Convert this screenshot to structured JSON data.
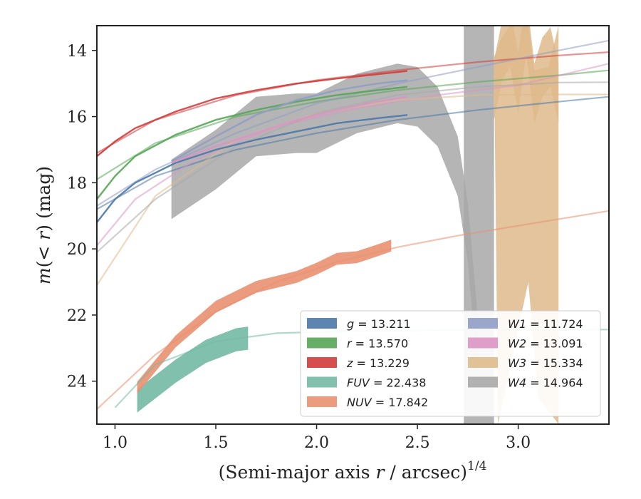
{
  "chart_data": {
    "type": "line",
    "xlabel": "(Semi-major axis r / arcsec)^{1/4}",
    "ylabel": "m(< r) (mag)",
    "xlim": [
      0.91,
      3.45
    ],
    "ylim": [
      25.3,
      13.25
    ],
    "y_inverted": true,
    "x_ticks": [
      "1.0",
      "1.5",
      "2.0",
      "2.5",
      "3.0"
    ],
    "x_tick_values": [
      1.0,
      1.5,
      2.0,
      2.5,
      3.0
    ],
    "y_ticks": [
      "14",
      "16",
      "18",
      "20",
      "22",
      "24"
    ],
    "y_tick_values": [
      14,
      16,
      18,
      20,
      22,
      24
    ],
    "grid": false,
    "legend_position": "lower-right",
    "legend": [
      {
        "key": "g",
        "label": "g = 13.211",
        "color": "#4a78a8"
      },
      {
        "key": "r",
        "label": "r = 13.570",
        "color": "#56a655"
      },
      {
        "key": "z",
        "label": "z = 13.229",
        "color": "#d03c3c"
      },
      {
        "key": "FUV",
        "label": "FUV = 22.438",
        "color": "#72b9a4"
      },
      {
        "key": "NUV",
        "label": "NUV = 17.842",
        "color": "#e99070"
      },
      {
        "key": "W1",
        "label": "W1 = 11.724",
        "color": "#8f9dc5"
      },
      {
        "key": "W2",
        "label": "W2 = 13.091",
        "color": "#dc94c4"
      },
      {
        "key": "W3",
        "label": "W3 = 15.334",
        "color": "#deba8b"
      },
      {
        "key": "W4",
        "label": "W4 = 14.964",
        "color": "#a8a8a8"
      }
    ],
    "series": [
      {
        "name": "g",
        "color": "#4a78a8",
        "data_x": [
          0.91,
          1.0,
          1.1,
          1.3,
          1.5,
          1.7,
          1.9,
          2.1,
          2.3,
          2.45
        ],
        "data_y": [
          19.2,
          18.5,
          18.0,
          17.4,
          17.0,
          16.7,
          16.45,
          16.2,
          16.05,
          15.95
        ],
        "model_x": [
          0.91,
          1.2,
          1.6,
          2.0,
          2.4,
          2.8,
          3.2,
          3.45
        ],
        "model_y": [
          18.8,
          17.8,
          17.0,
          16.5,
          16.1,
          15.8,
          15.55,
          15.4
        ]
      },
      {
        "name": "r",
        "color": "#56a655",
        "data_x": [
          0.91,
          1.0,
          1.1,
          1.3,
          1.5,
          1.7,
          1.9,
          2.1,
          2.3,
          2.45
        ],
        "data_y": [
          18.5,
          17.8,
          17.2,
          16.55,
          16.1,
          15.8,
          15.55,
          15.35,
          15.2,
          15.1
        ],
        "model_x": [
          0.91,
          1.2,
          1.6,
          2.0,
          2.4,
          2.8,
          3.2,
          3.45
        ],
        "model_y": [
          17.9,
          16.8,
          16.0,
          15.55,
          15.2,
          14.95,
          14.75,
          14.6
        ]
      },
      {
        "name": "z",
        "color": "#d03c3c",
        "data_x": [
          0.91,
          1.0,
          1.1,
          1.3,
          1.5,
          1.7,
          1.9,
          2.1,
          2.3,
          2.45
        ],
        "data_y": [
          17.2,
          16.75,
          16.35,
          15.85,
          15.45,
          15.2,
          15.0,
          14.85,
          14.72,
          14.62
        ],
        "model_x": [
          0.91,
          1.2,
          1.6,
          2.0,
          2.4,
          2.8,
          3.2,
          3.45
        ],
        "model_y": [
          17.1,
          16.1,
          15.35,
          14.9,
          14.6,
          14.35,
          14.15,
          14.05
        ]
      },
      {
        "name": "FUV",
        "color": "#72b9a4",
        "data_x": [
          1.11,
          1.3,
          1.45,
          1.6,
          1.66
        ],
        "data_y": [
          24.6,
          23.7,
          23.1,
          22.75,
          22.7
        ],
        "model_x": [
          1.0,
          1.2,
          1.5,
          1.8,
          2.2,
          2.6,
          3.0,
          3.45
        ],
        "model_y": [
          24.8,
          23.5,
          22.8,
          22.55,
          22.48,
          22.46,
          22.45,
          22.44
        ]
      },
      {
        "name": "NUV",
        "color": "#e99070",
        "data_x": [
          1.11,
          1.3,
          1.5,
          1.7,
          1.9,
          2.0,
          2.1,
          2.2,
          2.3,
          2.37
        ],
        "data_y": [
          24.2,
          22.8,
          21.75,
          21.15,
          20.85,
          20.6,
          20.3,
          20.25,
          20.05,
          19.9
        ],
        "model_x": [
          0.91,
          1.2,
          1.5,
          1.8,
          2.1,
          2.4,
          2.7,
          3.0,
          3.45
        ],
        "model_y": [
          24.85,
          23.2,
          21.9,
          21.0,
          20.4,
          19.95,
          19.6,
          19.3,
          18.85
        ]
      },
      {
        "name": "W1",
        "color": "#8f9dc5",
        "data_x": [
          1.28,
          1.5,
          1.7,
          1.9,
          2.1,
          2.3,
          2.45
        ],
        "data_y": [
          17.35,
          16.6,
          15.95,
          15.5,
          15.2,
          15.0,
          14.9
        ],
        "model_x": [
          0.91,
          1.2,
          1.6,
          2.0,
          2.4,
          2.8,
          3.2,
          3.45
        ],
        "model_y": [
          18.7,
          17.6,
          16.5,
          15.6,
          15.0,
          14.5,
          14.0,
          13.7
        ]
      },
      {
        "name": "W2",
        "color": "#dc94c4",
        "data_x": [
          1.28,
          1.5,
          1.7,
          1.9,
          2.1,
          2.3,
          2.45
        ],
        "data_y": [
          17.4,
          16.9,
          16.5,
          16.1,
          15.8,
          15.55,
          15.4
        ],
        "model_x": [
          0.91,
          1.1,
          1.4,
          1.8,
          2.2,
          2.6,
          3.0,
          3.45
        ],
        "model_y": [
          19.9,
          18.5,
          17.3,
          16.3,
          15.75,
          15.35,
          15.05,
          14.4
        ]
      },
      {
        "name": "W3",
        "color": "#deba8b",
        "data_x": [
          2.88,
          2.92,
          2.96,
          3.0,
          3.04,
          3.08,
          3.12,
          3.16,
          3.2
        ],
        "data_y": [
          15.2,
          14.0,
          13.6,
          15.0,
          13.2,
          15.3,
          14.5,
          14.2,
          15.3
        ],
        "model_x": [
          0.91,
          1.2,
          1.6,
          2.0,
          2.4,
          2.8,
          3.2,
          3.45
        ],
        "model_y": [
          21.1,
          18.4,
          16.7,
          15.9,
          15.5,
          15.35,
          15.33,
          15.33
        ]
      },
      {
        "name": "W4",
        "color": "#a8a8a8",
        "data_x": [
          1.28,
          1.5,
          1.7,
          1.9,
          2.0,
          2.2,
          2.4,
          2.5,
          2.6,
          2.7,
          2.75,
          2.8
        ],
        "data_y": [
          18.2,
          17.3,
          16.3,
          16.2,
          16.2,
          15.6,
          15.3,
          15.4,
          16.0,
          17.5,
          19.5,
          23.0
        ],
        "model_x": [
          0.91,
          1.2,
          1.6,
          2.0,
          2.4,
          2.8,
          3.2,
          3.45
        ],
        "model_y": [
          20.1,
          18.5,
          16.9,
          15.9,
          15.35,
          15.1,
          14.97,
          14.96
        ]
      }
    ]
  }
}
